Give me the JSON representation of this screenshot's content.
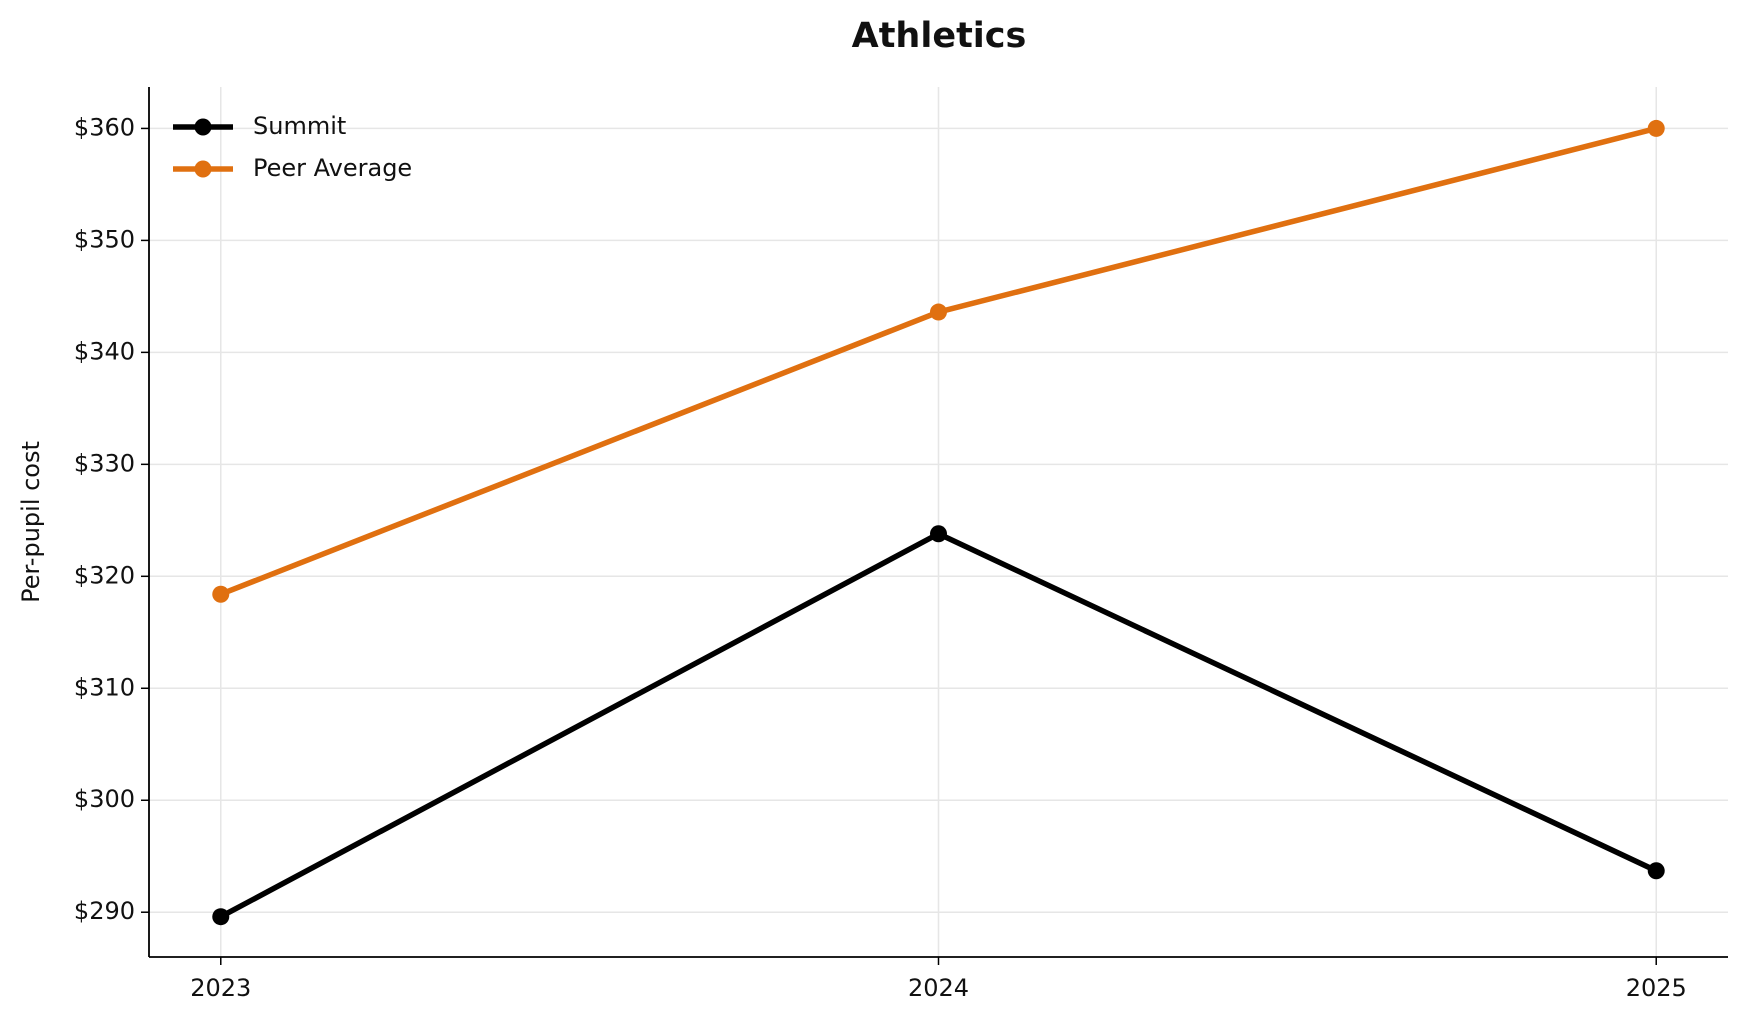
{
  "chart_data": {
    "type": "line",
    "title": "Athletics",
    "ylabel": "Per-pupil cost",
    "x": [
      2023,
      2024,
      2025
    ],
    "series": [
      {
        "name": "Summit",
        "color": "#000000",
        "values": [
          289.6,
          323.8,
          293.7
        ]
      },
      {
        "name": "Peer Average",
        "color": "#e07010",
        "values": [
          318.4,
          343.6,
          360.0
        ]
      }
    ],
    "xlim": [
      2022.9,
      2025.1
    ],
    "xticks": [
      2023,
      2024,
      2025
    ],
    "ylim": [
      286.0,
      363.7
    ],
    "yticks": [
      {
        "value": 290,
        "label": "$290"
      },
      {
        "value": 300,
        "label": "$300"
      },
      {
        "value": 310,
        "label": "$310"
      },
      {
        "value": 320,
        "label": "$320"
      },
      {
        "value": 330,
        "label": "$330"
      },
      {
        "value": 340,
        "label": "$340"
      },
      {
        "value": 350,
        "label": "$350"
      },
      {
        "value": 360,
        "label": "$360"
      }
    ],
    "grid": true,
    "legend": "upper left"
  }
}
